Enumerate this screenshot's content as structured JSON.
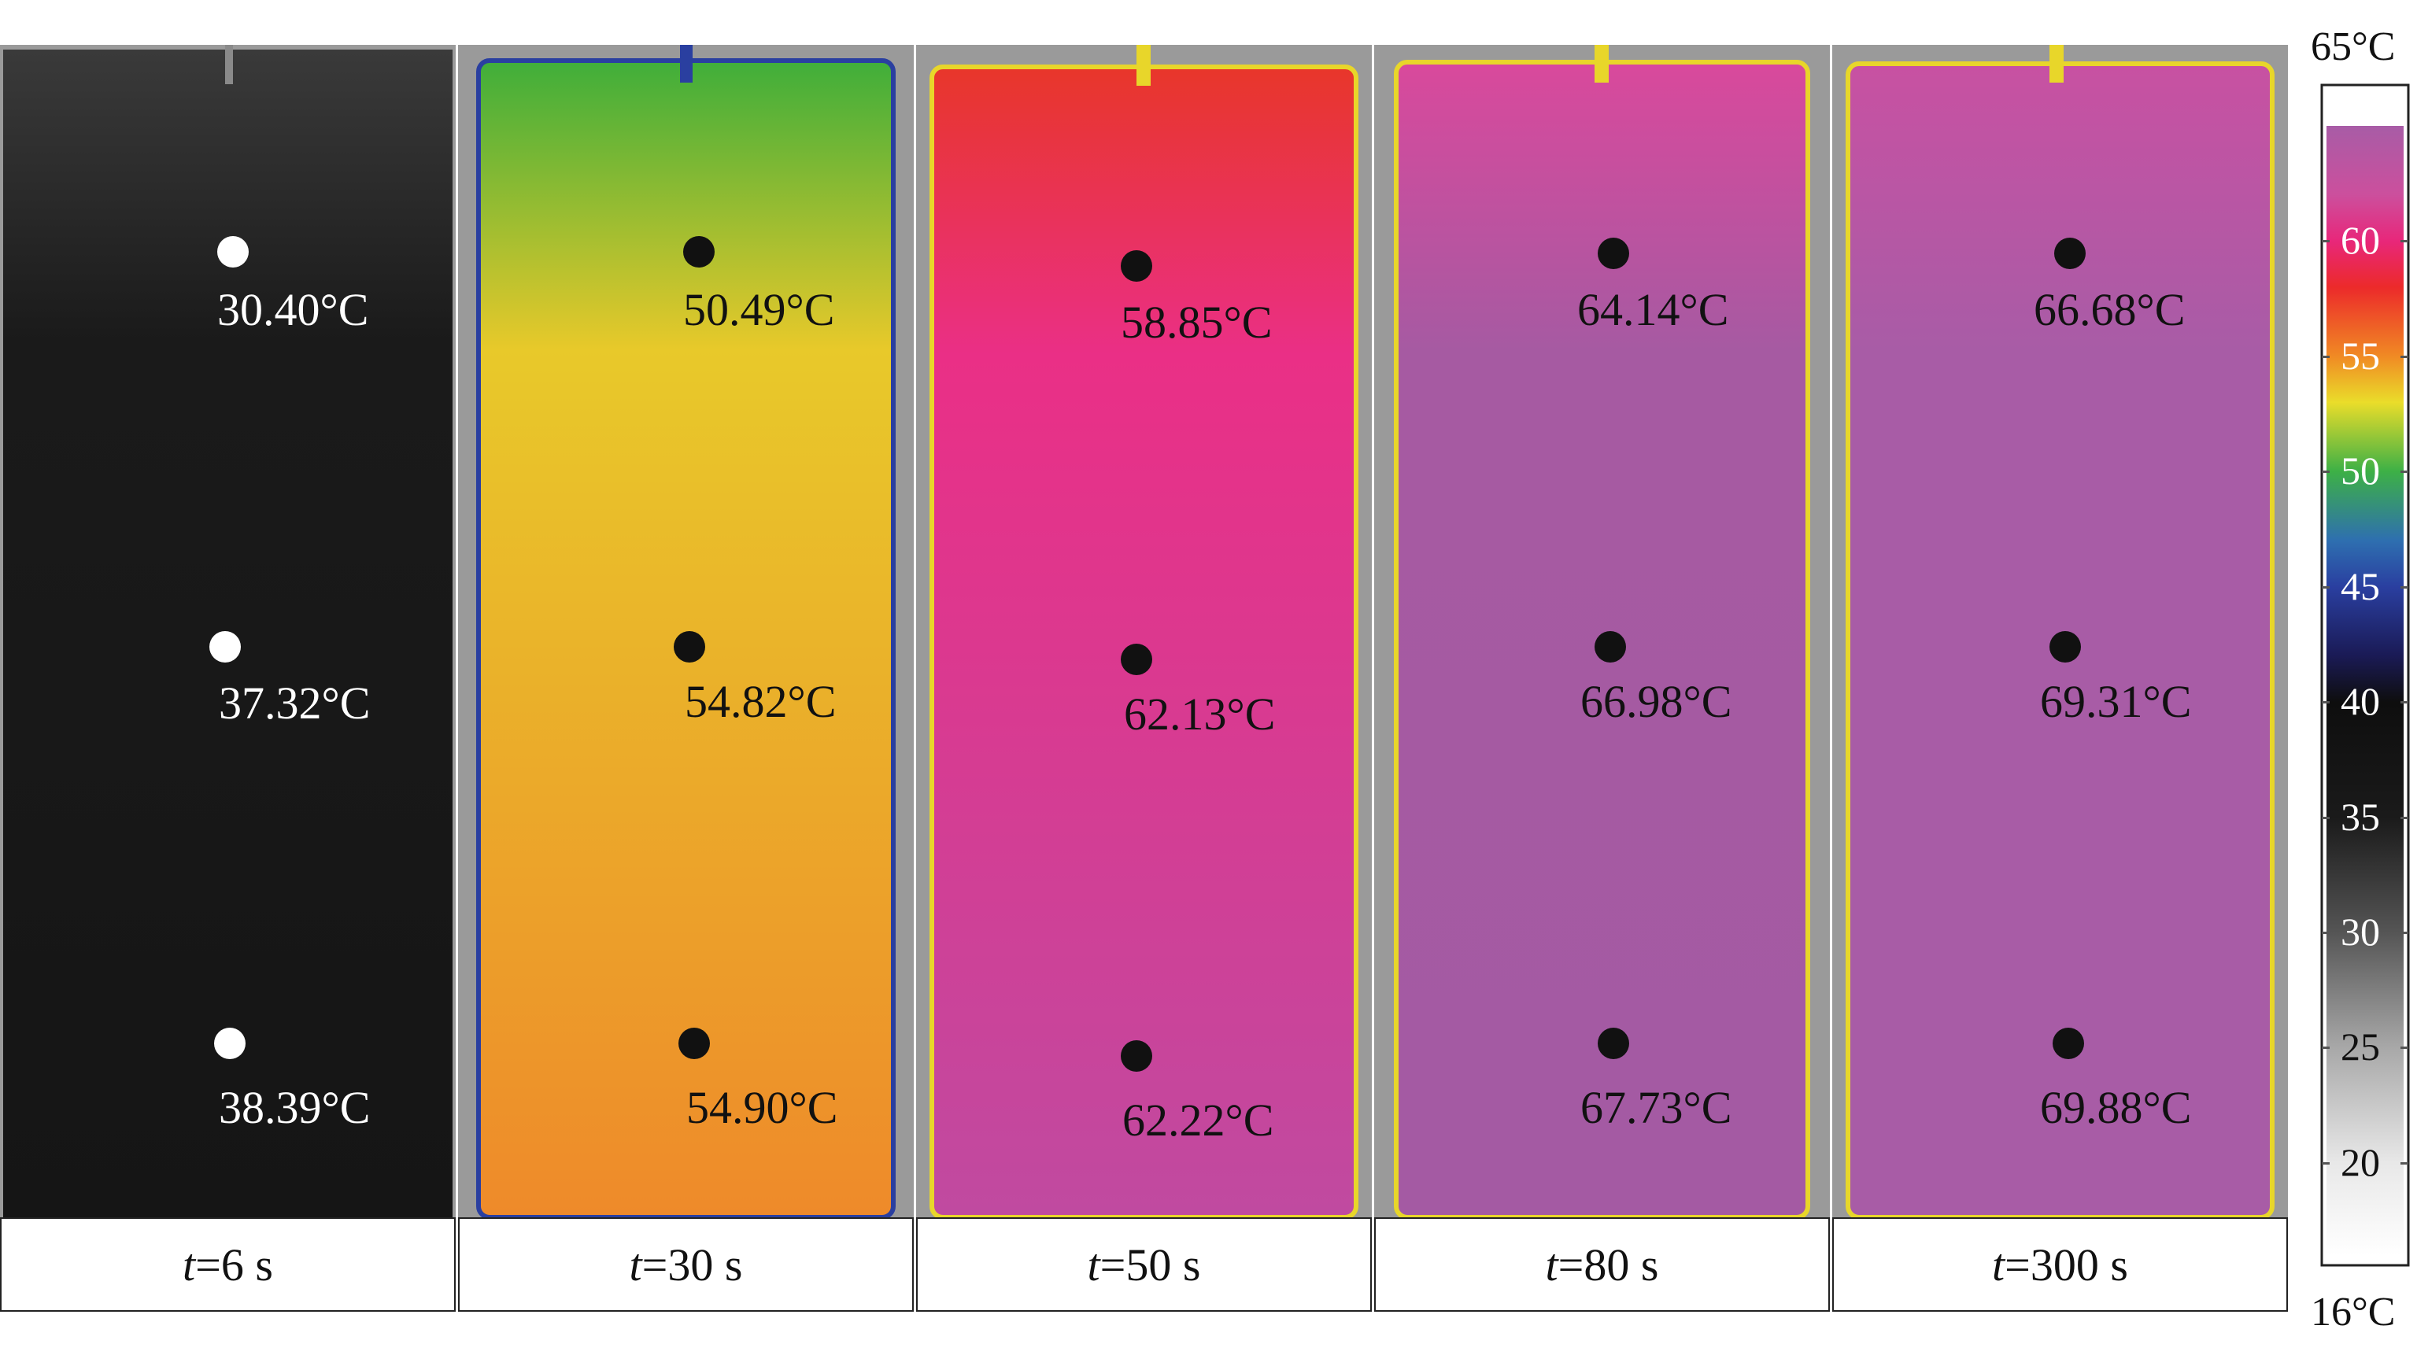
{
  "panels": [
    {
      "caption_var": "t",
      "caption_value": "=6 s",
      "palette": {
        "base": "#1a1a1a",
        "top": "#3a3a3a",
        "bottom": "#151515",
        "text": "#ffffff",
        "dot": "#ffffff"
      },
      "readings": [
        "30.40°C",
        "37.32°C",
        "38.39°C"
      ]
    },
    {
      "caption_var": "t",
      "caption_value": "=30 s",
      "palette": {
        "base": "#e8c92a",
        "top": "#3fae3a",
        "bottom": "#ee8a2a",
        "text": "#111111",
        "dot": "#111111"
      },
      "readings": [
        "50.49°C",
        "54.82°C",
        "54.90°C"
      ]
    },
    {
      "caption_var": "t",
      "caption_value": "=50 s",
      "palette": {
        "base": "#ea2f86",
        "top": "#e8362a",
        "bottom": "#c04aa0",
        "text": "#111111",
        "dot": "#111111"
      },
      "readings": [
        "58.85°C",
        "62.13°C",
        "62.22°C"
      ]
    },
    {
      "caption_var": "t",
      "caption_value": "=80 s",
      "palette": {
        "base": "#a65aa2",
        "top": "#d9499c",
        "bottom": "#a45aa3",
        "text": "#111111",
        "dot": "#111111"
      },
      "readings": [
        "64.14°C",
        "66.98°C",
        "67.73°C"
      ]
    },
    {
      "caption_var": "t",
      "caption_value": "=300 s",
      "palette": {
        "base": "#a85ca6",
        "top": "#c851a2",
        "bottom": "#a85ca6",
        "text": "#111111",
        "dot": "#111111"
      },
      "readings": [
        "66.68°C",
        "69.31°C",
        "69.88°C"
      ]
    }
  ],
  "colorbar": {
    "max_label": "65°C",
    "min_label": "16°C",
    "range": [
      16,
      65
    ],
    "ticks": [
      "60",
      "55",
      "50",
      "45",
      "40",
      "35",
      "30",
      "25",
      "20"
    ],
    "tick_values": [
      60,
      55,
      50,
      45,
      40,
      35,
      30,
      25,
      20
    ],
    "stops": [
      {
        "t": 65,
        "color": "#a85ca6"
      },
      {
        "t": 62,
        "color": "#cc4f9d"
      },
      {
        "t": 60,
        "color": "#e8277a"
      },
      {
        "t": 58,
        "color": "#ec2a2a"
      },
      {
        "t": 55,
        "color": "#f08a24"
      },
      {
        "t": 53,
        "color": "#eadd2a"
      },
      {
        "t": 50,
        "color": "#3db046"
      },
      {
        "t": 47,
        "color": "#2e6fb0"
      },
      {
        "t": 45,
        "color": "#2a3fa0"
      },
      {
        "t": 42,
        "color": "#1a1a55"
      },
      {
        "t": 40,
        "color": "#0e0e0e"
      },
      {
        "t": 35,
        "color": "#1a1a1a"
      },
      {
        "t": 30,
        "color": "#555555"
      },
      {
        "t": 25,
        "color": "#a8a8a8"
      },
      {
        "t": 20,
        "color": "#e8e8e8"
      },
      {
        "t": 16,
        "color": "#ffffff"
      }
    ]
  }
}
